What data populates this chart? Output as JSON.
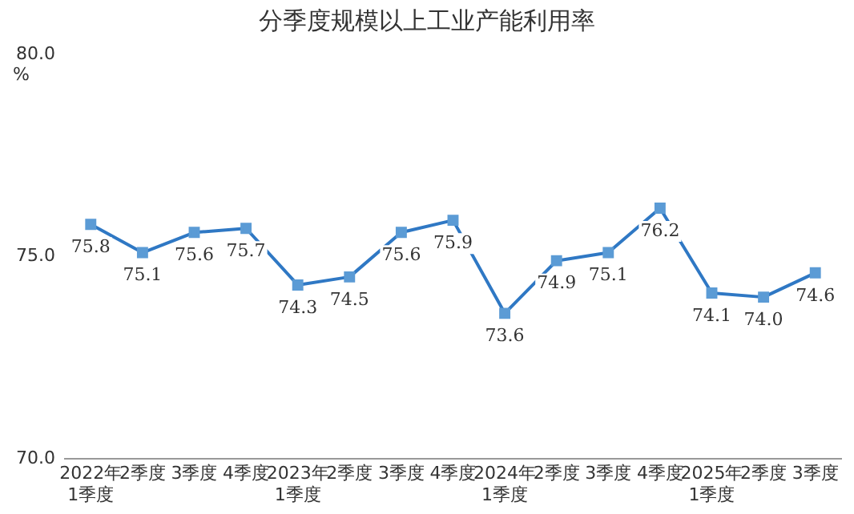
{
  "chart_data": {
    "type": "line",
    "title": "分季度规模以上工业产能利用率",
    "ylabel": "%",
    "categories": [
      "2022年\n1季度",
      "2季度",
      "3季度",
      "4季度",
      "2023年\n1季度",
      "2季度",
      "3季度",
      "4季度",
      "2024年\n1季度",
      "2季度",
      "3季度",
      "4季度",
      "2025年\n1季度",
      "2季度",
      "3季度"
    ],
    "series": [
      {
        "color": "#2f78c4",
        "values": [
          75.8,
          75.1,
          75.6,
          75.7,
          74.3,
          74.5,
          75.6,
          75.9,
          73.6,
          74.9,
          75.1,
          76.2,
          74.1,
          74.0,
          74.6
        ],
        "value_labels": [
          "75.8",
          "75.1",
          "75.6",
          "75.7",
          "74.3",
          "74.5",
          "75.6",
          "75.9",
          "73.6",
          "74.9",
          "75.1",
          "76.2",
          "74.1",
          "74.0",
          "74.6"
        ]
      }
    ],
    "ylim": [
      70,
      80
    ],
    "yticks": [
      {
        "value": 70,
        "label": "70.0"
      },
      {
        "value": 75,
        "label": "75.0"
      },
      {
        "value": 80,
        "label": "80.0"
      }
    ],
    "grid": false,
    "legend": false,
    "marker": "square",
    "line_style": "solid"
  }
}
